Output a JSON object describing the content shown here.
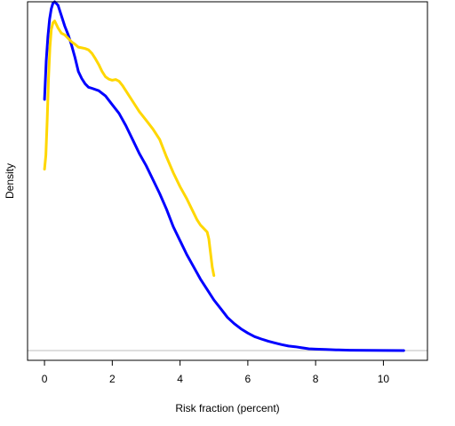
{
  "chart_data": {
    "type": "line",
    "title": "",
    "xlabel": "Risk fraction (percent)",
    "ylabel": "Density",
    "xlim": [
      -0.5,
      11.3
    ],
    "ylim": [
      -0.028,
      1.0
    ],
    "x_ticks": [
      0,
      2,
      4,
      6,
      8,
      10
    ],
    "x_tick_labels": [
      "0",
      "2",
      "4",
      "6",
      "8",
      "10"
    ],
    "y_ticks_shown": false,
    "grid": false,
    "legend": "none",
    "baseline_y": 0,
    "baseline_color": "#bebebe",
    "series": [
      {
        "color": "#0000ff",
        "x": [
          0,
          0.05,
          0.1,
          0.15,
          0.2,
          0.25,
          0.3,
          0.4,
          0.5,
          0.6,
          0.7,
          0.8,
          0.9,
          1.0,
          1.1,
          1.2,
          1.3,
          1.4,
          1.6,
          1.8,
          2.0,
          2.2,
          2.4,
          2.6,
          2.8,
          3.0,
          3.2,
          3.4,
          3.6,
          3.8,
          4.0,
          4.2,
          4.4,
          4.6,
          4.8,
          5.0,
          5.2,
          5.4,
          5.6,
          5.8,
          6.0,
          6.2,
          6.4,
          6.6,
          6.8,
          7.0,
          7.2,
          7.4,
          7.6,
          7.8,
          8.0,
          8.3,
          8.6,
          9.0,
          9.5,
          10.0,
          10.6
        ],
        "y": [
          0.72,
          0.83,
          0.9,
          0.95,
          0.98,
          0.996,
          1.0,
          0.99,
          0.96,
          0.93,
          0.905,
          0.875,
          0.84,
          0.8,
          0.78,
          0.765,
          0.755,
          0.752,
          0.745,
          0.73,
          0.705,
          0.68,
          0.645,
          0.605,
          0.565,
          0.53,
          0.49,
          0.45,
          0.405,
          0.355,
          0.315,
          0.275,
          0.24,
          0.205,
          0.175,
          0.145,
          0.12,
          0.095,
          0.077,
          0.062,
          0.05,
          0.04,
          0.033,
          0.027,
          0.022,
          0.017,
          0.013,
          0.011,
          0.008,
          0.005,
          0.004,
          0.003,
          0.002,
          0.001,
          0.0005,
          0.0002,
          0.0
        ]
      },
      {
        "color": "#ffd700",
        "x": [
          0,
          0.04,
          0.08,
          0.12,
          0.16,
          0.2,
          0.25,
          0.3,
          0.35,
          0.4,
          0.5,
          0.6,
          0.7,
          0.8,
          0.9,
          1.0,
          1.1,
          1.2,
          1.3,
          1.4,
          1.5,
          1.6,
          1.7,
          1.8,
          1.9,
          2.0,
          2.1,
          2.2,
          2.3,
          2.4,
          2.6,
          2.8,
          3.0,
          3.2,
          3.4,
          3.6,
          3.8,
          4.0,
          4.2,
          4.4,
          4.5,
          4.6,
          4.7,
          4.8,
          4.85,
          4.9,
          4.95,
          5.0
        ],
        "y": [
          0.52,
          0.56,
          0.66,
          0.78,
          0.87,
          0.92,
          0.94,
          0.945,
          0.935,
          0.925,
          0.91,
          0.905,
          0.895,
          0.885,
          0.878,
          0.87,
          0.868,
          0.866,
          0.862,
          0.852,
          0.837,
          0.82,
          0.8,
          0.785,
          0.778,
          0.775,
          0.777,
          0.772,
          0.76,
          0.745,
          0.715,
          0.685,
          0.66,
          0.635,
          0.605,
          0.555,
          0.51,
          0.47,
          0.435,
          0.395,
          0.375,
          0.36,
          0.35,
          0.34,
          0.32,
          0.28,
          0.24,
          0.215
        ]
      }
    ]
  }
}
